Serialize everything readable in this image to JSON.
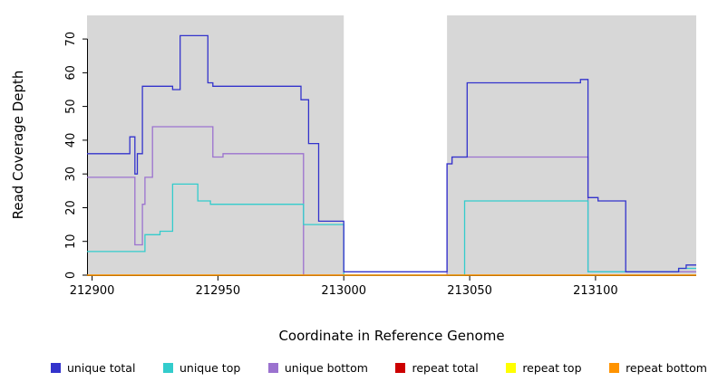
{
  "figure": {
    "bg": "#ffffff",
    "plot_bg": "#d7d7d7",
    "axis_color": "#000000"
  },
  "chart_data": {
    "type": "line",
    "step": true,
    "title": "",
    "xlabel": "Coordinate in Reference Genome",
    "ylabel": "Read Coverage Depth",
    "xlim": [
      212898,
      213140
    ],
    "ylim": [
      0,
      77
    ],
    "x_ticks": [
      212900,
      212950,
      213000,
      213050,
      213100
    ],
    "y_ticks": [
      0,
      10,
      20,
      30,
      40,
      50,
      60,
      70
    ],
    "grid": false,
    "shaded_regions": [
      {
        "x0": 212898,
        "x1": 213000
      },
      {
        "x0": 213041,
        "x1": 213140
      }
    ],
    "series": [
      {
        "name": "unique bottom",
        "color": "#9b72cf",
        "points": [
          [
            212898,
            29
          ],
          [
            212917,
            9
          ],
          [
            212920,
            21
          ],
          [
            212921,
            29
          ],
          [
            212924,
            44
          ],
          [
            212948,
            35
          ],
          [
            212952,
            36
          ],
          [
            212984,
            0
          ],
          [
            213041,
            33
          ],
          [
            213043,
            35
          ],
          [
            213097,
            1
          ],
          [
            213140,
            1
          ]
        ]
      },
      {
        "name": "unique top",
        "color": "#33cccc",
        "points": [
          [
            212898,
            7
          ],
          [
            212921,
            12
          ],
          [
            212927,
            13
          ],
          [
            212932,
            27
          ],
          [
            212942,
            22
          ],
          [
            212947,
            21
          ],
          [
            212984,
            15
          ],
          [
            213000,
            0
          ],
          [
            213048,
            22
          ],
          [
            213097,
            1
          ],
          [
            213133,
            2
          ],
          [
            213140,
            2
          ]
        ]
      },
      {
        "name": "unique total",
        "color": "#3333cc",
        "points": [
          [
            212898,
            36
          ],
          [
            212915,
            41
          ],
          [
            212917,
            30
          ],
          [
            212918,
            36
          ],
          [
            212920,
            56
          ],
          [
            212932,
            55
          ],
          [
            212935,
            71
          ],
          [
            212946,
            57
          ],
          [
            212948,
            56
          ],
          [
            212983,
            52
          ],
          [
            212986,
            39
          ],
          [
            212990,
            16
          ],
          [
            213000,
            1
          ],
          [
            213041,
            33
          ],
          [
            213043,
            35
          ],
          [
            213049,
            57
          ],
          [
            213094,
            58
          ],
          [
            213097,
            23
          ],
          [
            213101,
            22
          ],
          [
            213112,
            1
          ],
          [
            213133,
            2
          ],
          [
            213136,
            3
          ],
          [
            213140,
            3
          ]
        ]
      },
      {
        "name": "repeat total",
        "color": "#cc0000",
        "points": [
          [
            212898,
            0
          ],
          [
            213140,
            0
          ]
        ]
      },
      {
        "name": "repeat top",
        "color": "#ffff00",
        "points": [
          [
            212898,
            0
          ],
          [
            213140,
            0
          ]
        ]
      },
      {
        "name": "repeat bottom",
        "color": "#ff9300",
        "points": [
          [
            212898,
            0
          ],
          [
            213140,
            0
          ]
        ]
      }
    ],
    "legend": [
      {
        "label": "unique total",
        "color": "#3333cc"
      },
      {
        "label": "unique top",
        "color": "#33cccc"
      },
      {
        "label": "unique bottom",
        "color": "#9b72cf"
      },
      {
        "label": "repeat total",
        "color": "#cc0000"
      },
      {
        "label": "repeat top",
        "color": "#ffff00"
      },
      {
        "label": "repeat bottom",
        "color": "#ff9300"
      }
    ],
    "legend_position": "bottom"
  }
}
